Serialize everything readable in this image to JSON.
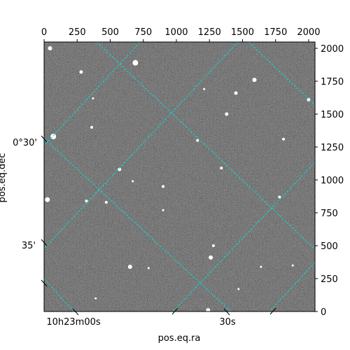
{
  "chart_data": {
    "type": "image",
    "image_description_colors": {
      "background_gray": "#7a7a7a",
      "grid_color": "#00e0e0"
    },
    "pixel_x_axis": {
      "ticks": [
        0,
        250,
        500,
        750,
        1000,
        1250,
        1500,
        1750,
        2000
      ],
      "range": [
        0,
        2048
      ]
    },
    "pixel_y_axis": {
      "ticks": [
        0,
        250,
        500,
        750,
        1000,
        1250,
        1500,
        1750,
        2000
      ],
      "range": [
        0,
        2048
      ]
    },
    "world_ra_ticks": [
      "10h23m00s",
      "30s"
    ],
    "world_dec_ticks": [
      "0°30'",
      "35'"
    ],
    "xlabel": "pos.eq.ra",
    "ylabel": "pos.eq.dec",
    "grid": true,
    "stars": [
      {
        "x": 45,
        "y": 2000,
        "r": 3
      },
      {
        "x": 280,
        "y": 1820,
        "r": 2.5
      },
      {
        "x": 690,
        "y": 1890,
        "r": 4
      },
      {
        "x": 1590,
        "y": 1760,
        "r": 3
      },
      {
        "x": 1450,
        "y": 1660,
        "r": 2.5
      },
      {
        "x": 1380,
        "y": 1500,
        "r": 2.5
      },
      {
        "x": 1210,
        "y": 1690,
        "r": 1.5
      },
      {
        "x": 370,
        "y": 1620,
        "r": 1.5
      },
      {
        "x": 70,
        "y": 1330,
        "r": 4
      },
      {
        "x": 360,
        "y": 1400,
        "r": 2
      },
      {
        "x": 2000,
        "y": 1610,
        "r": 2.5
      },
      {
        "x": 1810,
        "y": 1310,
        "r": 2
      },
      {
        "x": 1160,
        "y": 1300,
        "r": 2
      },
      {
        "x": 570,
        "y": 1080,
        "r": 2.5
      },
      {
        "x": 670,
        "y": 990,
        "r": 1.5
      },
      {
        "x": 900,
        "y": 950,
        "r": 2
      },
      {
        "x": 1340,
        "y": 1090,
        "r": 2
      },
      {
        "x": 25,
        "y": 850,
        "r": 3.5
      },
      {
        "x": 320,
        "y": 840,
        "r": 2
      },
      {
        "x": 470,
        "y": 830,
        "r": 2
      },
      {
        "x": 900,
        "y": 770,
        "r": 1.5
      },
      {
        "x": 1780,
        "y": 870,
        "r": 2
      },
      {
        "x": 1280,
        "y": 500,
        "r": 2
      },
      {
        "x": 1260,
        "y": 410,
        "r": 3
      },
      {
        "x": 650,
        "y": 340,
        "r": 3
      },
      {
        "x": 790,
        "y": 330,
        "r": 1.5
      },
      {
        "x": 1640,
        "y": 340,
        "r": 1.5
      },
      {
        "x": 1470,
        "y": 170,
        "r": 1.5
      },
      {
        "x": 1240,
        "y": 10,
        "r": 3
      },
      {
        "x": 390,
        "y": 100,
        "r": 1.5
      },
      {
        "x": 1880,
        "y": 350,
        "r": 1.5
      }
    ]
  }
}
